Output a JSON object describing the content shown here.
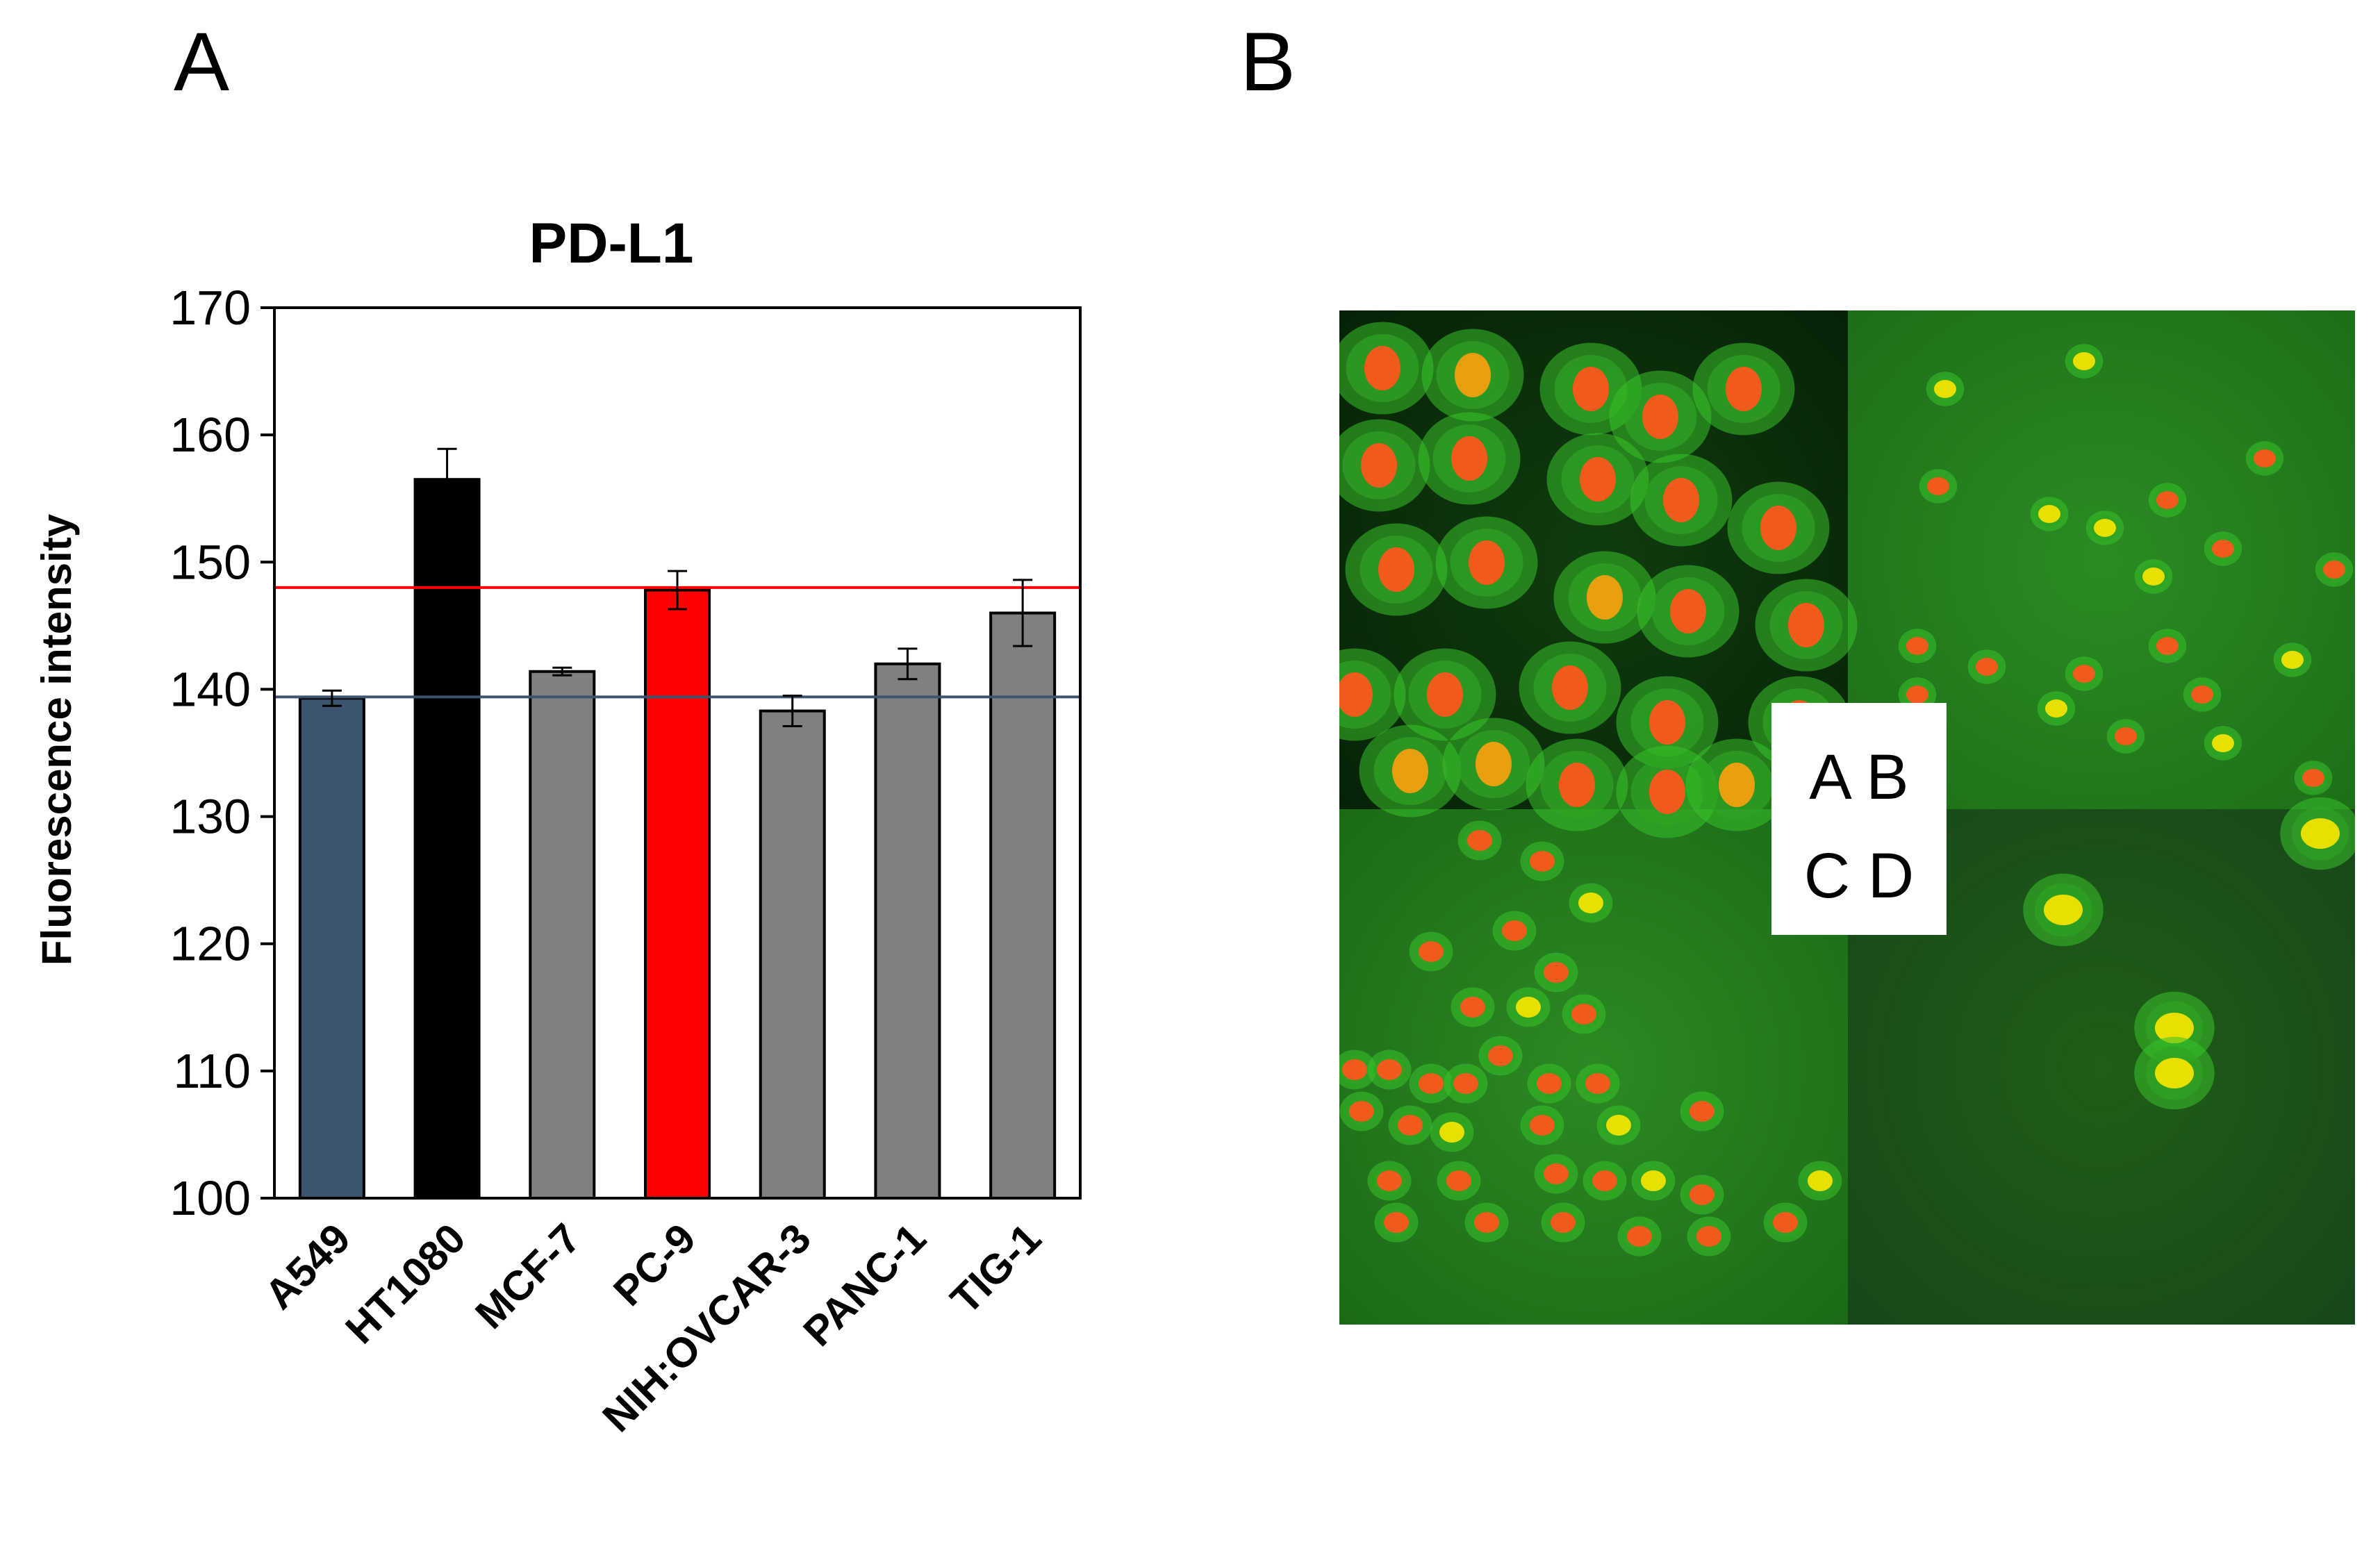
{
  "panels": {
    "a": "A",
    "b": "B"
  },
  "chart_data": {
    "type": "bar",
    "title": "PD-L1",
    "xlabel": "",
    "ylabel": "Fluorescence intensity",
    "ylim": [
      100,
      170
    ],
    "yticks": [
      100,
      110,
      120,
      130,
      140,
      150,
      160,
      170
    ],
    "categories": [
      "A549",
      "HT1080",
      "MCF-7",
      "PC-9",
      "NIH:OVCAR-3",
      "PANC-1",
      "TIG-1"
    ],
    "values": [
      139.3,
      156.5,
      141.4,
      147.8,
      138.3,
      142.0,
      146.0
    ],
    "errors": [
      0.6,
      2.4,
      0.3,
      1.5,
      1.2,
      1.2,
      2.6
    ],
    "bar_colors": [
      "#3c5470",
      "#000000",
      "#808080",
      "#ff0000",
      "#808080",
      "#808080",
      "#808080"
    ],
    "reference_lines": [
      {
        "value": 148.0,
        "color": "#ff0000"
      },
      {
        "value": 139.4,
        "color": "#3c5470"
      }
    ],
    "grid": false,
    "legend": "none"
  },
  "micrograph": {
    "legend": {
      "row1": "A B",
      "row2": "C D"
    },
    "colors": {
      "background_green": "#1e7a1a",
      "dark_green": "#0d3a0c",
      "nucleus_orange": "#f05a1a",
      "nucleus_yellow": "#e8e000",
      "cytoplasm_green": "#39c12a"
    }
  }
}
